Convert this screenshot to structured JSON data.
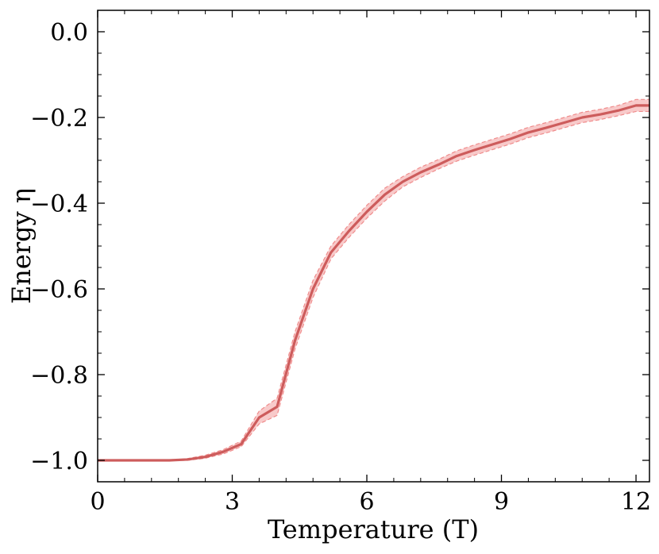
{
  "chart_data": {
    "type": "line",
    "xlabel": "Temperature (T)",
    "ylabel": "Energy η",
    "xlim": [
      0,
      12.3
    ],
    "ylim": [
      -1.05,
      0.05
    ],
    "xticks": [
      0,
      3,
      6,
      9,
      12
    ],
    "xtick_labels": [
      "0",
      "3",
      "6",
      "9",
      "12"
    ],
    "yticks": [
      0.0,
      -0.2,
      -0.4,
      -0.6,
      -0.8,
      -1.0
    ],
    "ytick_labels": [
      "0.0",
      "−0.2",
      "−0.4",
      "−0.6",
      "−0.8",
      "−1.0"
    ],
    "grid": false,
    "colors": {
      "line": "#cd5c5c",
      "band_fill": "#f4a6a6",
      "band_edge": "#f08c8c"
    },
    "series": [
      {
        "x": [
          0,
          0.4,
          0.8,
          1.2,
          1.6,
          2.0,
          2.4,
          2.8,
          3.2,
          3.6,
          4.0,
          4.4,
          4.8,
          5.2,
          5.6,
          6.0,
          6.4,
          6.8,
          7.2,
          7.6,
          8.0,
          8.4,
          8.8,
          9.2,
          9.6,
          10.0,
          10.4,
          10.8,
          11.2,
          11.6,
          12.0,
          12.3
        ],
        "y": [
          -1.0,
          -1.0,
          -1.0,
          -1.0,
          -1.0,
          -0.998,
          -0.992,
          -0.98,
          -0.962,
          -0.9,
          -0.875,
          -0.72,
          -0.6,
          -0.515,
          -0.465,
          -0.42,
          -0.38,
          -0.35,
          -0.328,
          -0.31,
          -0.29,
          -0.276,
          -0.263,
          -0.25,
          -0.235,
          -0.224,
          -0.212,
          -0.2,
          -0.193,
          -0.184,
          -0.172,
          -0.172
        ],
        "lower": [
          -1.0,
          -1.0,
          -1.0,
          -1.0,
          -1.0,
          -1.0,
          -0.995,
          -0.985,
          -0.968,
          -0.915,
          -0.895,
          -0.74,
          -0.62,
          -0.53,
          -0.48,
          -0.435,
          -0.395,
          -0.362,
          -0.34,
          -0.32,
          -0.302,
          -0.288,
          -0.275,
          -0.262,
          -0.247,
          -0.236,
          -0.224,
          -0.212,
          -0.205,
          -0.196,
          -0.186,
          -0.186
        ],
        "upper": [
          -1.0,
          -1.0,
          -1.0,
          -1.0,
          -1.0,
          -0.996,
          -0.988,
          -0.975,
          -0.955,
          -0.885,
          -0.855,
          -0.7,
          -0.58,
          -0.5,
          -0.45,
          -0.405,
          -0.365,
          -0.338,
          -0.316,
          -0.298,
          -0.278,
          -0.264,
          -0.251,
          -0.238,
          -0.223,
          -0.212,
          -0.2,
          -0.188,
          -0.181,
          -0.172,
          -0.158,
          -0.158
        ]
      }
    ]
  }
}
